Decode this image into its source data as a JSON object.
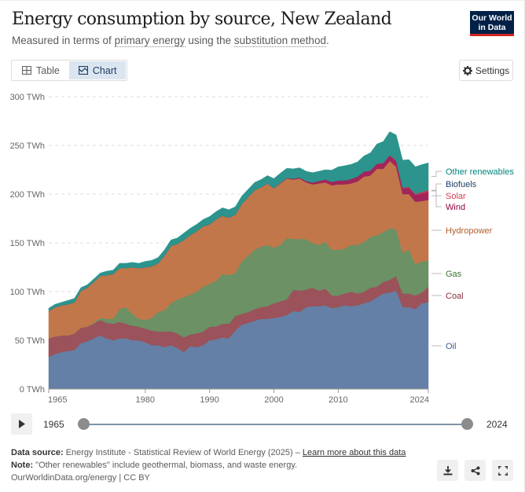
{
  "header": {
    "title": "Energy consumption by source, New Zealand",
    "subtitle_pre": "Measured in terms of ",
    "subtitle_link1": "primary energy",
    "subtitle_mid": " using the ",
    "subtitle_link2": "substitution method",
    "subtitle_post": ".",
    "logo_line1": "Our World",
    "logo_line2": "in Data"
  },
  "tabs": [
    {
      "label": "Table",
      "icon": "table-icon",
      "active": false
    },
    {
      "label": "Chart",
      "icon": "chart-icon",
      "active": true
    }
  ],
  "settings_label": "Settings",
  "timeline": {
    "start": "1965",
    "end": "2024",
    "range": [
      1965,
      2024
    ]
  },
  "footer": {
    "source_label": "Data source:",
    "source_text": " Energy Institute - Statistical Review of World Energy (2025) – ",
    "source_link": "Learn more about this data",
    "note_label": "Note:",
    "note_text": " \"Other renewables\" include geothermal, biomass, and waste energy.",
    "url": "OurWorldinData.org/energy | CC BY"
  },
  "actions": [
    {
      "name": "download-button",
      "icon": "download-icon"
    },
    {
      "name": "share-button",
      "icon": "share-icon"
    },
    {
      "name": "fullscreen-button",
      "icon": "fullscreen-icon"
    }
  ],
  "chart_data": {
    "type": "area",
    "stacked": true,
    "title": "Energy consumption by source, New Zealand",
    "subtitle": "Measured in terms of primary energy using the substitution method.",
    "xlabel": "",
    "ylabel": "",
    "unit": "TWh",
    "ylim": [
      0,
      300
    ],
    "yticks": [
      0,
      50,
      100,
      150,
      200,
      250,
      300
    ],
    "ytick_labels": [
      "0 TWh",
      "50 TWh",
      "100 TWh",
      "150 TWh",
      "200 TWh",
      "250 TWh",
      "300 TWh"
    ],
    "xticks": [
      1965,
      1980,
      1990,
      2000,
      2010,
      2024
    ],
    "xtick_labels": [
      "1965",
      "1980",
      "1990",
      "2000",
      "2010",
      "2024"
    ],
    "grid": "horizontal-dashed",
    "legend": "right",
    "x": [
      1965,
      1966,
      1967,
      1968,
      1969,
      1970,
      1971,
      1972,
      1973,
      1974,
      1975,
      1976,
      1977,
      1978,
      1979,
      1980,
      1981,
      1982,
      1983,
      1984,
      1985,
      1986,
      1987,
      1988,
      1989,
      1990,
      1991,
      1992,
      1993,
      1994,
      1995,
      1996,
      1997,
      1998,
      1999,
      2000,
      2001,
      2002,
      2003,
      2004,
      2005,
      2006,
      2007,
      2008,
      2009,
      2010,
      2011,
      2012,
      2013,
      2014,
      2015,
      2016,
      2017,
      2018,
      2019,
      2020,
      2021,
      2022,
      2023,
      2024
    ],
    "series": [
      {
        "name": "Oil",
        "color": "#6480a6",
        "label_color": "#3d5a87",
        "values": [
          33,
          36,
          38,
          39,
          40,
          47,
          49,
          52,
          55,
          52,
          50,
          52,
          52,
          50,
          50,
          48,
          45,
          45,
          43,
          45,
          42,
          38,
          44,
          43,
          45,
          50,
          51,
          53,
          52,
          60,
          66,
          68,
          70,
          72,
          72,
          73,
          74,
          76,
          80,
          79,
          84,
          85,
          85,
          86,
          83,
          84,
          86,
          85,
          86,
          88,
          90,
          94,
          98,
          99,
          101,
          84,
          84,
          82,
          88,
          89
        ]
      },
      {
        "name": "Coal",
        "color": "#9b525a",
        "label_color": "#883039",
        "values": [
          19,
          18,
          17,
          16,
          17,
          16,
          15,
          15,
          16,
          16,
          17,
          17,
          15,
          15,
          14,
          14,
          15,
          14,
          16,
          14,
          15,
          15,
          12,
          14,
          14,
          14,
          13,
          14,
          15,
          15,
          11,
          11,
          12,
          12,
          13,
          15,
          16,
          16,
          22,
          22,
          18,
          19,
          16,
          17,
          13,
          12,
          12,
          15,
          12,
          12,
          14,
          11,
          12,
          13,
          15,
          14,
          14,
          14,
          11,
          16
        ]
      },
      {
        "name": "Gas",
        "color": "#6b9164",
        "label_color": "#3e7035",
        "values": [
          0,
          0,
          0,
          0,
          0,
          0,
          0,
          1,
          2,
          4,
          5,
          13,
          17,
          12,
          8,
          9,
          13,
          20,
          22,
          29,
          35,
          41,
          41,
          43,
          46,
          44,
          47,
          51,
          50,
          44,
          54,
          58,
          61,
          62,
          63,
          57,
          58,
          63,
          52,
          53,
          52,
          46,
          47,
          48,
          47,
          47,
          46,
          48,
          50,
          51,
          52,
          53,
          51,
          53,
          48,
          42,
          45,
          32,
          32,
          27
        ]
      },
      {
        "name": "Hydropower",
        "color": "#c1774a",
        "label_color": "#b05e2c",
        "values": [
          28,
          30,
          31,
          32,
          32,
          38,
          40,
          42,
          43,
          45,
          46,
          42,
          40,
          48,
          52,
          54,
          53,
          50,
          56,
          59,
          57,
          59,
          61,
          62,
          62,
          61,
          63,
          60,
          59,
          60,
          59,
          60,
          61,
          61,
          63,
          61,
          63,
          61,
          61,
          62,
          58,
          60,
          63,
          61,
          66,
          67,
          66,
          63,
          65,
          67,
          63,
          68,
          65,
          69,
          64,
          60,
          57,
          64,
          62,
          62
        ]
      },
      {
        "name": "Wind",
        "color": "#a2255a",
        "label_color": "#970046",
        "values": [
          0,
          0,
          0,
          0,
          0,
          0,
          0,
          0,
          0,
          0,
          0,
          0,
          0,
          0,
          0,
          0,
          0,
          0,
          0,
          0,
          0,
          0,
          0,
          0,
          0,
          0,
          0,
          0,
          0,
          0,
          0,
          0,
          0,
          0,
          0,
          0,
          0.5,
          0.5,
          1,
          1,
          1.5,
          2,
          2.5,
          3,
          3.5,
          4,
          4,
          4.5,
          5,
          5,
          5,
          5,
          5.5,
          5.5,
          6,
          6,
          6.5,
          7,
          8,
          8.5
        ]
      },
      {
        "name": "Solar",
        "color": "#d73c50",
        "label_color": "#d73c50",
        "values": [
          0,
          0,
          0,
          0,
          0,
          0,
          0,
          0,
          0,
          0,
          0,
          0,
          0,
          0,
          0,
          0,
          0,
          0,
          0,
          0,
          0,
          0,
          0,
          0,
          0,
          0,
          0,
          0,
          0,
          0,
          0,
          0,
          0,
          0,
          0,
          0,
          0,
          0,
          0,
          0,
          0,
          0,
          0,
          0,
          0,
          0,
          0,
          0,
          0,
          0.1,
          0.2,
          0.3,
          0.4,
          0.5,
          0.6,
          0.7,
          0.8,
          1,
          1.2,
          1.5
        ]
      },
      {
        "name": "Biofuels",
        "color": "#2c4a6b",
        "label_color": "#1d3d63",
        "values": [
          0,
          0,
          0,
          0,
          0,
          0,
          0,
          0,
          0,
          0,
          0,
          0,
          0,
          0,
          0,
          0,
          0,
          0,
          0,
          0,
          0,
          0,
          0,
          0,
          0,
          0,
          0,
          0,
          0,
          0,
          0,
          0,
          0,
          0,
          0,
          0,
          0,
          0,
          0,
          0,
          0,
          0,
          0,
          0,
          0.1,
          0.1,
          0.1,
          0.1,
          0.1,
          0.1,
          0.1,
          0.1,
          0.1,
          0.1,
          0.1,
          0.1,
          0.1,
          0.1,
          0.1,
          0.1
        ]
      },
      {
        "name": "Other renewables",
        "color": "#2c948d",
        "label_color": "#00847e",
        "values": [
          3,
          3,
          3,
          4,
          4,
          3,
          3,
          3,
          3,
          4,
          4,
          5,
          5,
          5,
          5,
          6,
          6,
          6,
          6,
          6,
          6,
          7,
          7,
          7,
          7,
          8,
          8,
          8,
          8,
          8,
          8,
          8,
          8,
          8,
          8,
          10,
          10,
          10,
          10,
          10,
          10,
          10,
          10,
          10,
          12,
          14,
          15,
          15,
          15,
          16,
          18,
          20,
          22,
          24,
          26,
          28,
          28,
          28,
          28,
          28
        ]
      }
    ]
  }
}
